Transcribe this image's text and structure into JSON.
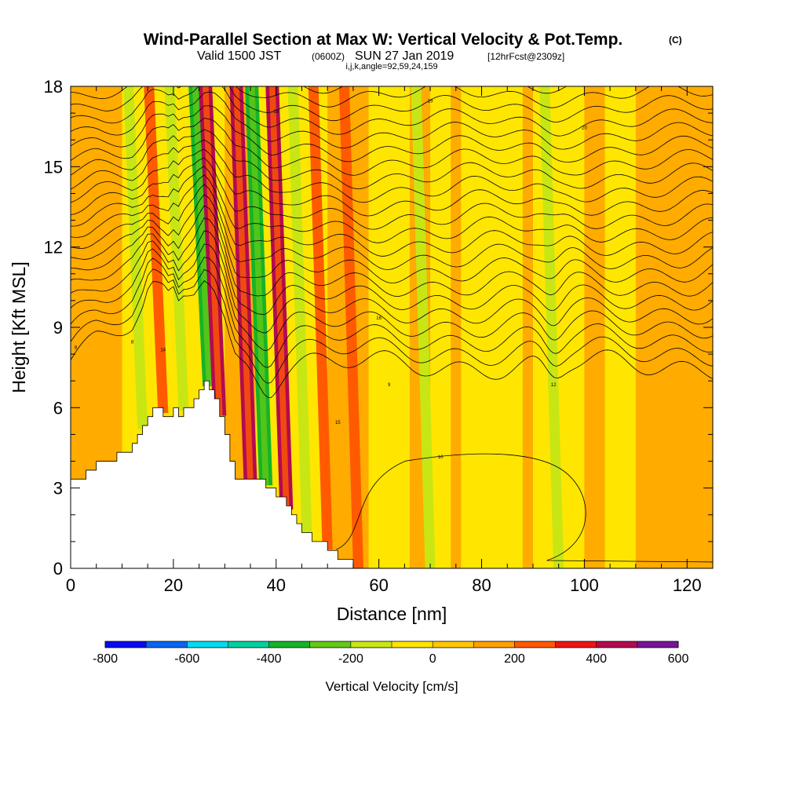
{
  "title": {
    "main": "Wind-Parallel Section at Max W: Vertical Velocity & Pot.Temp.",
    "copyright": "(C)",
    "valid_prefix": "Valid 1500 JST",
    "valid_utc": "(0600Z)",
    "valid_date": "SUN 27 Jan 2019",
    "forecast": "[12hrFcst@2309z]",
    "section_indices": "i,j,k,angle=92,59,24,159"
  },
  "chart_data": {
    "type": "heatmap",
    "xlabel": "Distance [nm]",
    "ylabel": "Height [Kft MSL]",
    "xlim": [
      0,
      125
    ],
    "ylim": [
      0,
      18
    ],
    "x_ticks": [
      "0",
      "20",
      "40",
      "60",
      "80",
      "100",
      "120"
    ],
    "y_ticks": [
      "0",
      "3",
      "6",
      "9",
      "12",
      "15",
      "18"
    ],
    "colorbar": {
      "label": "Vertical Velocity [cm/s]",
      "bounds": [
        -800,
        -700,
        -600,
        -500,
        -400,
        -300,
        -200,
        -100,
        0,
        100,
        200,
        300,
        400,
        500,
        600
      ],
      "tick_labels": [
        "-800",
        "-600",
        "-400",
        "-200",
        "0",
        "200",
        "400",
        "600"
      ],
      "colors": [
        "#0a0af0",
        "#0a64f0",
        "#00dcf0",
        "#00d0a0",
        "#14b428",
        "#64c814",
        "#c8e614",
        "#ffe600",
        "#ffc800",
        "#ffa000",
        "#ff5a00",
        "#f01414",
        "#b40a50",
        "#781496"
      ]
    },
    "terrain_profile": {
      "x_nm": [
        0,
        3,
        5,
        10,
        12,
        14,
        15,
        16,
        18,
        19,
        20,
        21,
        22,
        23,
        24,
        25,
        26,
        27,
        28,
        29,
        30,
        31,
        32,
        33,
        35,
        37,
        39,
        40,
        42,
        44,
        46,
        48,
        50,
        52,
        54,
        56
      ],
      "height_kft": [
        3.2,
        3.6,
        3.9,
        4.3,
        4.5,
        5.2,
        5.8,
        6.0,
        5.8,
        5.6,
        5.9,
        5.5,
        5.9,
        6.1,
        6.3,
        6.7,
        7.0,
        6.8,
        6.4,
        5.7,
        5.0,
        4.1,
        3.4,
        3.2,
        3.2,
        3.2,
        3.0,
        2.8,
        2.2,
        1.6,
        1.2,
        1.0,
        0.7,
        0.4,
        0.2,
        0.0
      ]
    },
    "updrafts": [
      {
        "x_nm": 14,
        "w_cms": -200
      },
      {
        "x_nm": 18,
        "w_cms": 200
      },
      {
        "x_nm": 22,
        "w_cms": -200
      },
      {
        "x_nm": 27,
        "w_cms": -400
      },
      {
        "x_nm": 29,
        "w_cms": 400
      },
      {
        "x_nm": 35,
        "w_cms": 400
      },
      {
        "x_nm": 38,
        "w_cms": -400
      },
      {
        "x_nm": 42,
        "w_cms": 400
      },
      {
        "x_nm": 46,
        "w_cms": -200
      },
      {
        "x_nm": 50,
        "w_cms": 200
      },
      {
        "x_nm": 56,
        "w_cms": 200
      },
      {
        "x_nm": 70,
        "w_cms": -200
      },
      {
        "x_nm": 95,
        "w_cms": -200
      }
    ],
    "theta_contour_count": 22,
    "closed_contour": {
      "x_nm": [
        56,
        126
      ],
      "height_kft": [
        0,
        4.3
      ]
    },
    "contour_labels": [
      "8",
      "8",
      "9",
      "10",
      "12",
      "14",
      "15",
      "16",
      "18",
      "19",
      "20"
    ]
  }
}
